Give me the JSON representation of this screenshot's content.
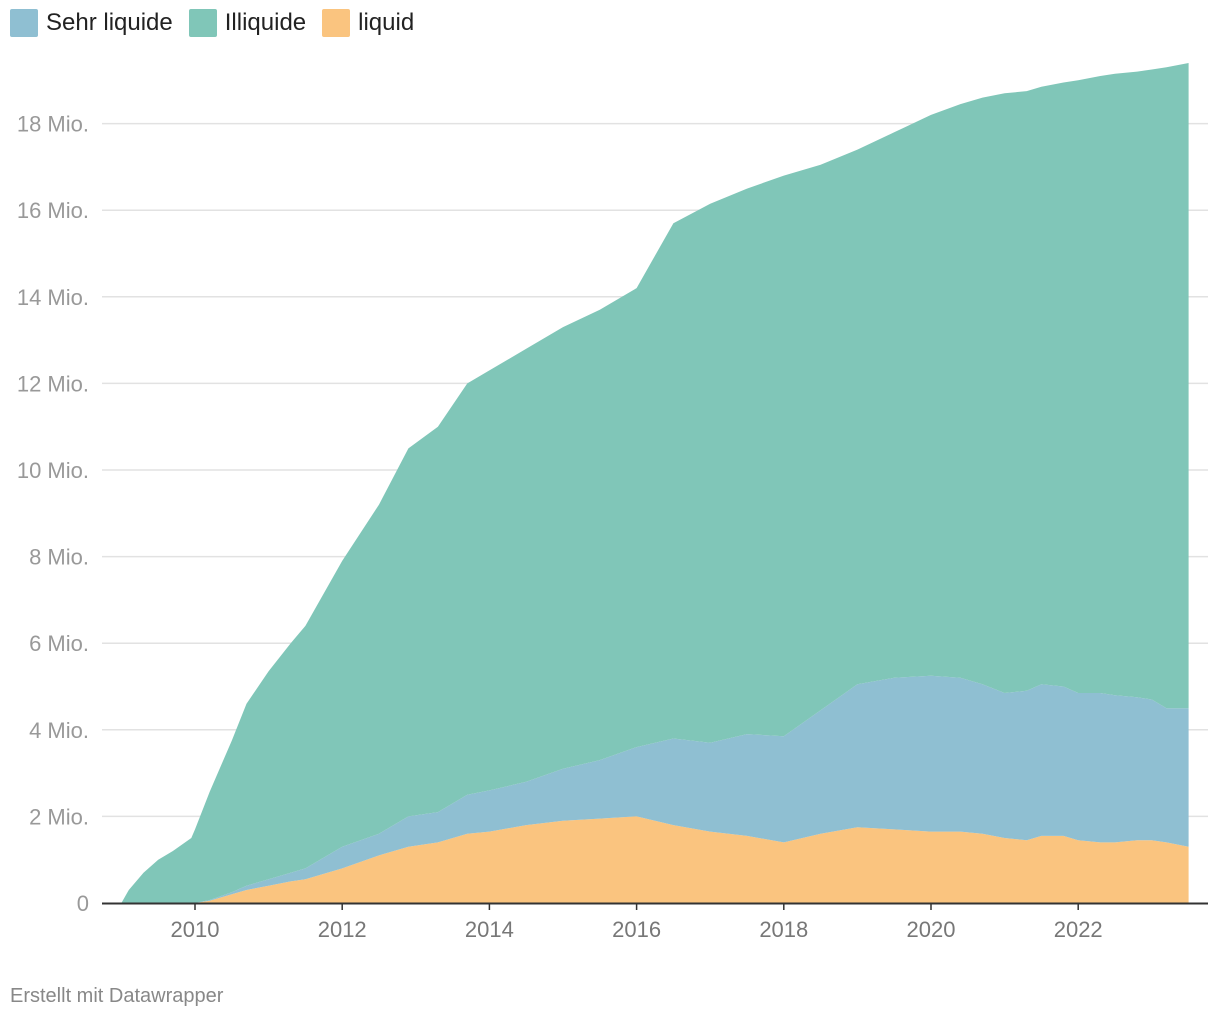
{
  "legend": {
    "items": [
      {
        "label": "Sehr liquide",
        "color": "#8fbfd2"
      },
      {
        "label": "Illiquide",
        "color": "#80c6b8"
      },
      {
        "label": "liquid",
        "color": "#fac47f"
      }
    ]
  },
  "footer": {
    "credit": "Erstellt mit Datawrapper"
  },
  "chart_data": {
    "type": "area",
    "stacked": true,
    "x_label": "",
    "y_label": "",
    "xlim": [
      2009,
      2023.5
    ],
    "ylim": [
      0,
      19500000
    ],
    "grid": true,
    "legend_position": "top-left",
    "y_ticks": [
      {
        "value": 0,
        "label": "0"
      },
      {
        "value": 2000000,
        "label": "2 Mio."
      },
      {
        "value": 4000000,
        "label": "4 Mio."
      },
      {
        "value": 6000000,
        "label": "6 Mio."
      },
      {
        "value": 8000000,
        "label": "8 Mio."
      },
      {
        "value": 10000000,
        "label": "10 Mio."
      },
      {
        "value": 12000000,
        "label": "12 Mio."
      },
      {
        "value": 14000000,
        "label": "14 Mio."
      },
      {
        "value": 16000000,
        "label": "16 Mio."
      },
      {
        "value": 18000000,
        "label": "18 Mio."
      }
    ],
    "x_ticks": [
      {
        "value": 2010,
        "label": "2010"
      },
      {
        "value": 2012,
        "label": "2012"
      },
      {
        "value": 2014,
        "label": "2014"
      },
      {
        "value": 2016,
        "label": "2016"
      },
      {
        "value": 2018,
        "label": "2018"
      },
      {
        "value": 2020,
        "label": "2020"
      },
      {
        "value": 2022,
        "label": "2022"
      }
    ],
    "x": [
      2009.0,
      2009.1,
      2009.3,
      2009.5,
      2009.7,
      2009.95,
      2010.0,
      2010.2,
      2010.5,
      2010.7,
      2011.0,
      2011.3,
      2011.5,
      2012.0,
      2012.5,
      2012.9,
      2013.3,
      2013.7,
      2014.0,
      2014.5,
      2015.0,
      2015.5,
      2016.0,
      2016.5,
      2017.0,
      2017.5,
      2018.0,
      2018.5,
      2019.0,
      2019.5,
      2020.0,
      2020.4,
      2020.7,
      2021.0,
      2021.3,
      2021.5,
      2021.8,
      2022.0,
      2022.3,
      2022.5,
      2022.8,
      2023.0,
      2023.2,
      2023.5
    ],
    "series": [
      {
        "name": "liquid",
        "color": "#fac47f",
        "values": [
          0,
          0,
          0,
          0,
          0,
          0,
          0,
          50000,
          200000,
          300000,
          400000,
          500000,
          550000,
          800000,
          1100000,
          1300000,
          1400000,
          1600000,
          1650000,
          1800000,
          1900000,
          1950000,
          2000000,
          1800000,
          1650000,
          1550000,
          1400000,
          1600000,
          1750000,
          1700000,
          1650000,
          1650000,
          1600000,
          1500000,
          1450000,
          1550000,
          1550000,
          1450000,
          1400000,
          1400000,
          1450000,
          1450000,
          1400000,
          1300000
        ]
      },
      {
        "name": "Sehr liquide",
        "color": "#8fbfd2",
        "values": [
          0,
          0,
          0,
          0,
          0,
          0,
          0,
          20000,
          50000,
          100000,
          150000,
          200000,
          250000,
          500000,
          500000,
          700000,
          700000,
          900000,
          950000,
          1000000,
          1200000,
          1350000,
          1600000,
          2000000,
          2050000,
          2350000,
          2450000,
          2850000,
          3300000,
          3500000,
          3600000,
          3550000,
          3450000,
          3350000,
          3450000,
          3500000,
          3450000,
          3400000,
          3450000,
          3400000,
          3300000,
          3250000,
          3100000,
          3200000
        ]
      },
      {
        "name": "Illiquide",
        "color": "#80c6b8",
        "values": [
          0,
          300000,
          700000,
          1000000,
          1200000,
          1500000,
          1700000,
          2500000,
          3500000,
          4200000,
          4800000,
          5300000,
          5600000,
          6600000,
          7600000,
          8500000,
          8900000,
          9500000,
          9700000,
          10000000,
          10200000,
          10400000,
          10600000,
          11900000,
          12450000,
          12600000,
          12950000,
          12600000,
          12350000,
          12600000,
          12950000,
          13250000,
          13550000,
          13850000,
          13850000,
          13800000,
          13950000,
          14150000,
          14250000,
          14350000,
          14450000,
          14550000,
          14800000,
          14900000
        ]
      }
    ],
    "stack_order": [
      "liquid",
      "Sehr liquide",
      "Illiquide"
    ]
  }
}
